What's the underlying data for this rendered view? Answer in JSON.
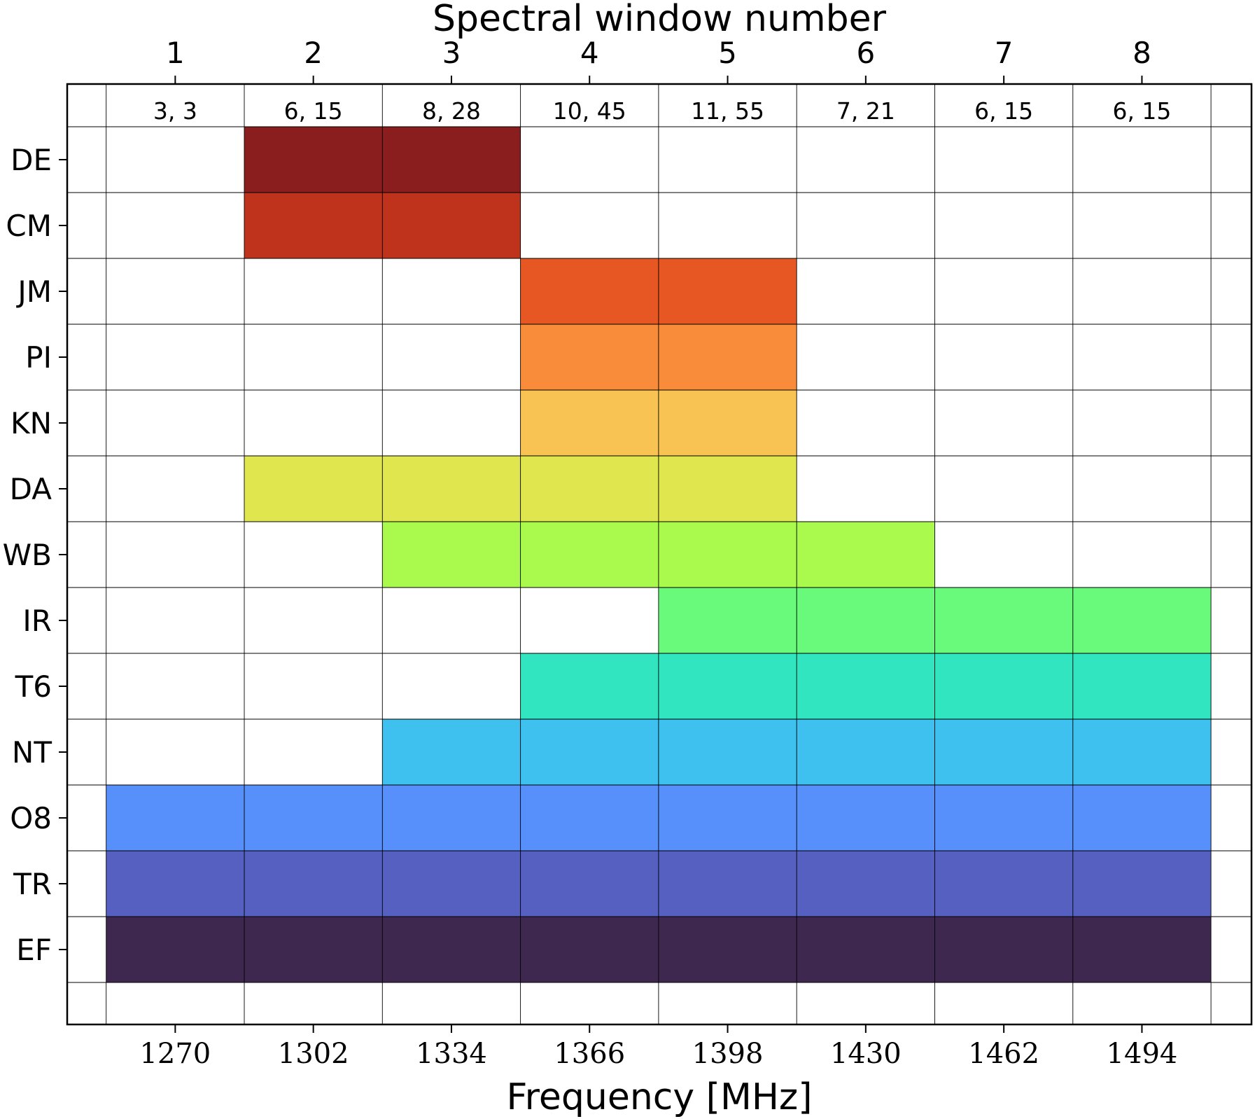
{
  "chart_data": {
    "type": "heatmap",
    "title": "Spectral window number",
    "xlabel": "Frequency [MHz]",
    "ylabel": "",
    "x_ticks": [
      "1270",
      "1302",
      "1334",
      "1366",
      "1398",
      "1430",
      "1462",
      "1494"
    ],
    "top_ticks": [
      "1",
      "2",
      "3",
      "4",
      "5",
      "6",
      "7",
      "8"
    ],
    "column_annotations": [
      "3, 3",
      "6, 15",
      "8, 28",
      "10, 45",
      "11, 55",
      "7, 21",
      "6, 15",
      "6, 15"
    ],
    "grid": true,
    "rows": [
      {
        "label": "DE",
        "color": "#8a1d1e",
        "windows": [
          2,
          3
        ]
      },
      {
        "label": "CM",
        "color": "#bf331d",
        "windows": [
          2,
          3
        ]
      },
      {
        "label": "JM",
        "color": "#e75723",
        "windows": [
          4,
          5
        ]
      },
      {
        "label": "PI",
        "color": "#f98c3a",
        "windows": [
          4,
          5
        ]
      },
      {
        "label": "KN",
        "color": "#f8c352",
        "windows": [
          4,
          5
        ]
      },
      {
        "label": "DA",
        "color": "#dfe64e",
        "windows": [
          2,
          3,
          4,
          5
        ]
      },
      {
        "label": "WB",
        "color": "#aafa4e",
        "windows": [
          3,
          4,
          5,
          6
        ]
      },
      {
        "label": "IR",
        "color": "#69fa7c",
        "windows": [
          5,
          6,
          7,
          8
        ]
      },
      {
        "label": "T6",
        "color": "#31e5c0",
        "windows": [
          4,
          5,
          6,
          7,
          8
        ]
      },
      {
        "label": "NT",
        "color": "#3ec1ee",
        "windows": [
          3,
          4,
          5,
          6,
          7,
          8
        ]
      },
      {
        "label": "O8",
        "color": "#5890fb",
        "windows": [
          1,
          2,
          3,
          4,
          5,
          6,
          7,
          8
        ]
      },
      {
        "label": "TR",
        "color": "#5560c1",
        "windows": [
          1,
          2,
          3,
          4,
          5,
          6,
          7,
          8
        ]
      },
      {
        "label": "EF",
        "color": "#3f284f",
        "windows": [
          1,
          2,
          3,
          4,
          5,
          6,
          7,
          8
        ]
      }
    ]
  }
}
